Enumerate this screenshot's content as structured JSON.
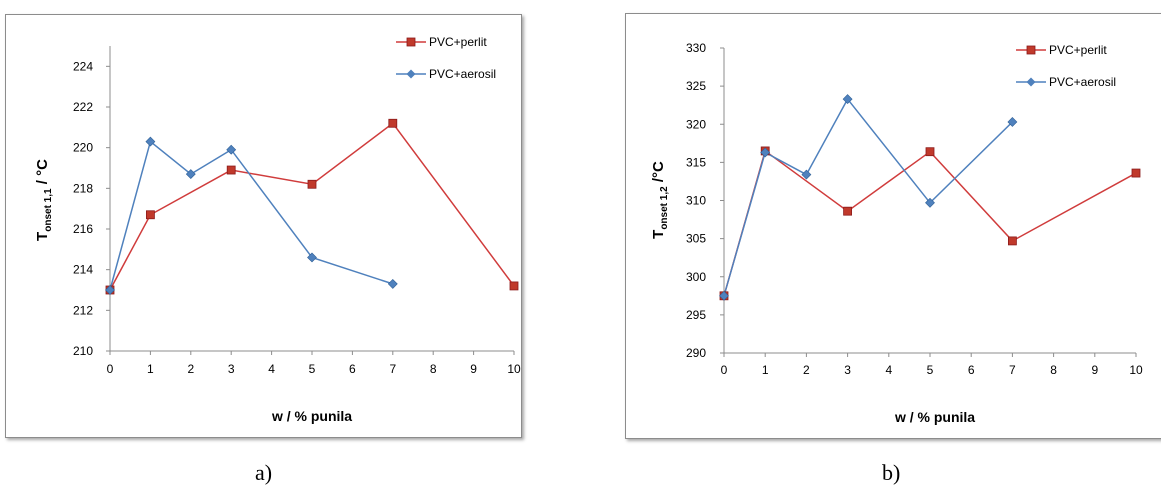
{
  "chart_data": [
    {
      "type": "line",
      "x_categories": [
        "0",
        "1",
        "2",
        "3",
        "4",
        "5",
        "6",
        "7",
        "8",
        "9",
        "10"
      ],
      "xlabel": "w / % punila",
      "ylabel": {
        "main": "T",
        "sub": "onset 1,1",
        "unit": " / °C"
      },
      "ylim": [
        210,
        225
      ],
      "yticks": [
        210,
        212,
        214,
        216,
        218,
        220,
        222,
        224
      ],
      "grid": false,
      "legend_position": "top-right",
      "series": [
        {
          "name": "PVC+perlit",
          "color": "#d03c3c",
          "marker": "square",
          "points": [
            [
              0,
              213.0
            ],
            [
              1,
              216.7
            ],
            [
              3,
              218.9
            ],
            [
              5,
              218.2
            ],
            [
              7,
              221.2
            ],
            [
              10,
              213.2
            ]
          ]
        },
        {
          "name": "PVC+aerosil",
          "color": "#4f81bd",
          "marker": "diamond",
          "points": [
            [
              0,
              213.0
            ],
            [
              1,
              220.3
            ],
            [
              2,
              218.7
            ],
            [
              3,
              219.9
            ],
            [
              5,
              214.6
            ],
            [
              7,
              213.3
            ]
          ]
        }
      ],
      "caption": "a)"
    },
    {
      "type": "line",
      "x_categories": [
        "0",
        "1",
        "2",
        "3",
        "4",
        "5",
        "6",
        "7",
        "8",
        "9",
        "10"
      ],
      "xlabel": "w / % punila",
      "ylabel": {
        "main": "T",
        "sub": "onset 1,2",
        "unit": " /°C"
      },
      "ylim": [
        290,
        330
      ],
      "yticks": [
        290,
        295,
        300,
        305,
        310,
        315,
        320,
        325,
        330
      ],
      "grid": false,
      "legend_position": "top-right",
      "series": [
        {
          "name": "PVC+perlit",
          "color": "#d03c3c",
          "marker": "square",
          "points": [
            [
              0,
              297.5
            ],
            [
              1,
              316.5
            ],
            [
              3,
              308.6
            ],
            [
              5,
              316.4
            ],
            [
              7,
              304.7
            ],
            [
              10,
              313.6
            ]
          ]
        },
        {
          "name": "PVC+aerosil",
          "color": "#4f81bd",
          "marker": "diamond",
          "points": [
            [
              0,
              297.5
            ],
            [
              1,
              316.3
            ],
            [
              2,
              313.4
            ],
            [
              3,
              323.3
            ],
            [
              5,
              309.7
            ],
            [
              7,
              320.3
            ]
          ]
        }
      ],
      "caption": "b)"
    }
  ]
}
